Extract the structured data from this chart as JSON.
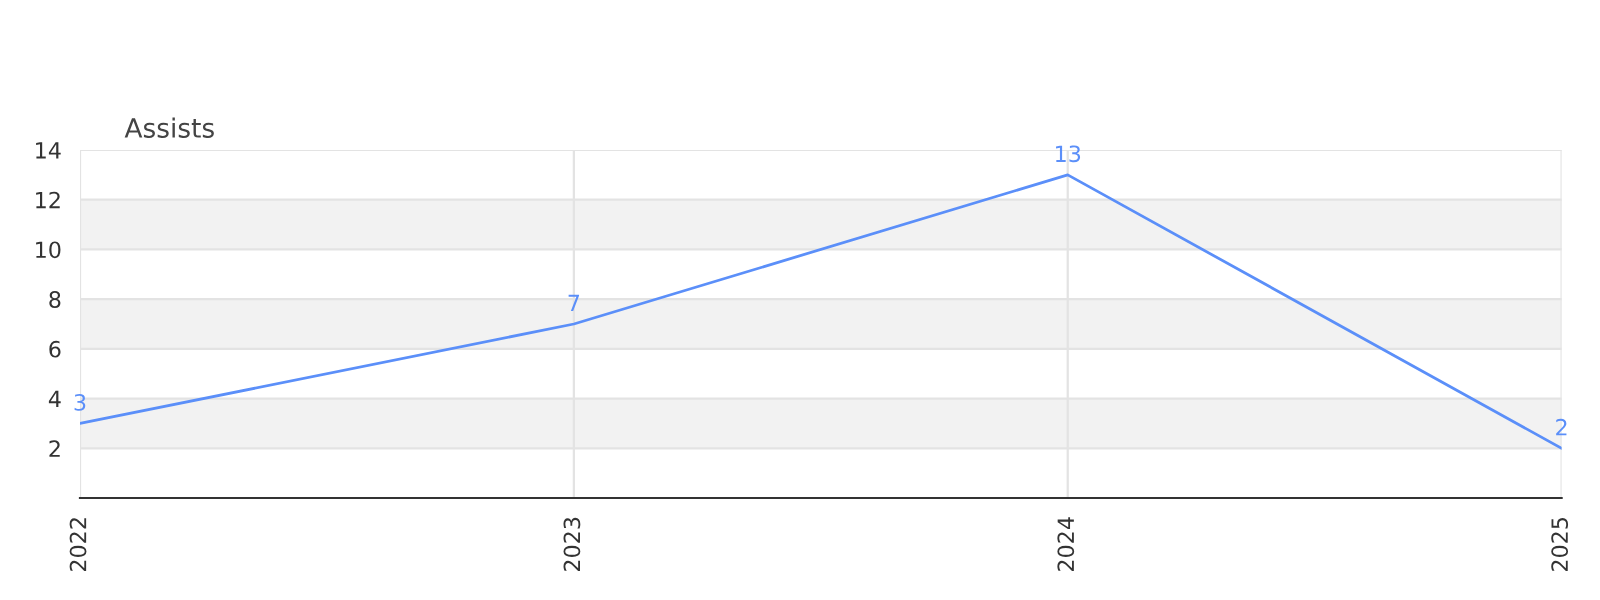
{
  "chart_data": {
    "type": "line",
    "ylabel": "Assists",
    "categories": [
      "2022",
      "2023",
      "2024",
      "2025"
    ],
    "series": [
      {
        "color": "#5b8ff9",
        "values": [
          3,
          7,
          13,
          2
        ]
      }
    ],
    "ylim": [
      0,
      14
    ],
    "yticks": [
      {
        "value": 0,
        "label": null
      },
      2,
      4,
      6,
      8,
      10,
      12,
      14
    ],
    "bands": [
      {
        "axis": "y",
        "from": 2,
        "to": 4,
        "color": "#f2f2f2"
      },
      {
        "axis": "y",
        "from": 6,
        "to": 8,
        "color": "#f2f2f2"
      },
      {
        "axis": "y",
        "from": 10,
        "to": 12,
        "color": "#f2f2f2"
      }
    ],
    "grid": true,
    "data_labels": true,
    "marker": "none",
    "line_style": "solid",
    "legend": false
  }
}
